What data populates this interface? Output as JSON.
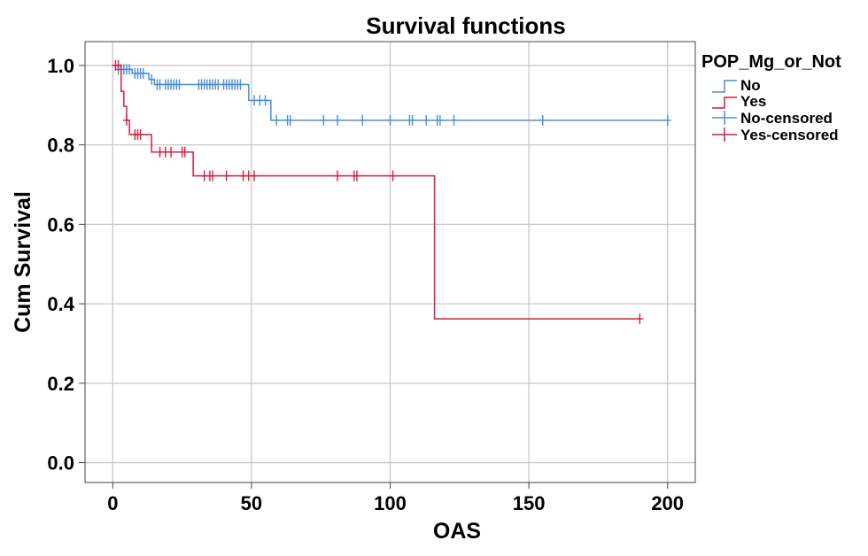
{
  "chart_data": {
    "type": "line",
    "subtype": "kaplan-meier-survival",
    "title": "Survival functions",
    "xlabel": "OAS",
    "ylabel": "Cum Survival",
    "xlim": [
      -10,
      210
    ],
    "ylim": [
      -0.05,
      1.06
    ],
    "xticks": [
      0,
      50,
      100,
      150,
      200
    ],
    "xtick_labels": [
      "0",
      "50",
      "100",
      "150",
      "200"
    ],
    "yticks": [
      0.0,
      0.2,
      0.4,
      0.6,
      0.8,
      1.0
    ],
    "ytick_labels": [
      "0.0",
      "0.2",
      "0.4",
      "0.6",
      "0.8",
      "1.0"
    ],
    "grid": true,
    "legend": {
      "title": "POP_Mg_or_Not",
      "placement": "top-right outside",
      "entries": [
        "No",
        "Yes",
        "No-censored",
        "Yes-censored"
      ]
    },
    "series": [
      {
        "name": "No",
        "color": "#4a8fd4",
        "steps": [
          [
            0,
            1.0
          ],
          [
            2,
            0.99
          ],
          [
            7,
            0.98
          ],
          [
            13,
            0.965
          ],
          [
            15,
            0.952
          ],
          [
            49,
            0.912
          ],
          [
            57,
            0.862
          ],
          [
            200,
            0.862
          ]
        ],
        "censored": [
          [
            2,
            0.99
          ],
          [
            3,
            0.99
          ],
          [
            4,
            0.99
          ],
          [
            5,
            0.99
          ],
          [
            6,
            0.99
          ],
          [
            8,
            0.98
          ],
          [
            9,
            0.98
          ],
          [
            10,
            0.98
          ],
          [
            11,
            0.98
          ],
          [
            14,
            0.965
          ],
          [
            16,
            0.952
          ],
          [
            17,
            0.952
          ],
          [
            19,
            0.952
          ],
          [
            20,
            0.952
          ],
          [
            21,
            0.952
          ],
          [
            22,
            0.952
          ],
          [
            23,
            0.952
          ],
          [
            24,
            0.952
          ],
          [
            31,
            0.952
          ],
          [
            32,
            0.952
          ],
          [
            33,
            0.952
          ],
          [
            34,
            0.952
          ],
          [
            35,
            0.952
          ],
          [
            36,
            0.952
          ],
          [
            37,
            0.952
          ],
          [
            38,
            0.952
          ],
          [
            40,
            0.952
          ],
          [
            41,
            0.952
          ],
          [
            42,
            0.952
          ],
          [
            43,
            0.952
          ],
          [
            44,
            0.952
          ],
          [
            45,
            0.952
          ],
          [
            46,
            0.952
          ],
          [
            51,
            0.912
          ],
          [
            53,
            0.912
          ],
          [
            55,
            0.912
          ],
          [
            59,
            0.862
          ],
          [
            63,
            0.862
          ],
          [
            64,
            0.862
          ],
          [
            76,
            0.862
          ],
          [
            81,
            0.862
          ],
          [
            90,
            0.862
          ],
          [
            100,
            0.862
          ],
          [
            107,
            0.862
          ],
          [
            108,
            0.862
          ],
          [
            113,
            0.862
          ],
          [
            117,
            0.862
          ],
          [
            118,
            0.862
          ],
          [
            123,
            0.862
          ],
          [
            155,
            0.862
          ],
          [
            200,
            0.862
          ]
        ]
      },
      {
        "name": "Yes",
        "color": "#d11f3f",
        "steps": [
          [
            0,
            1.0
          ],
          [
            3,
            0.935
          ],
          [
            4,
            0.897
          ],
          [
            5,
            0.862
          ],
          [
            6,
            0.826
          ],
          [
            14,
            0.782
          ],
          [
            29,
            0.722
          ],
          [
            116,
            0.362
          ],
          [
            190,
            0.362
          ]
        ],
        "censored": [
          [
            1,
            1.0
          ],
          [
            2,
            1.0
          ],
          [
            5,
            0.862
          ],
          [
            8,
            0.826
          ],
          [
            9,
            0.826
          ],
          [
            10,
            0.826
          ],
          [
            17,
            0.782
          ],
          [
            19,
            0.782
          ],
          [
            21,
            0.782
          ],
          [
            25,
            0.782
          ],
          [
            26,
            0.782
          ],
          [
            33,
            0.722
          ],
          [
            35,
            0.722
          ],
          [
            36,
            0.722
          ],
          [
            41,
            0.722
          ],
          [
            47,
            0.722
          ],
          [
            49,
            0.722
          ],
          [
            51,
            0.722
          ],
          [
            81,
            0.722
          ],
          [
            87,
            0.722
          ],
          [
            88,
            0.722
          ],
          [
            101,
            0.722
          ],
          [
            190,
            0.362
          ]
        ]
      }
    ]
  }
}
